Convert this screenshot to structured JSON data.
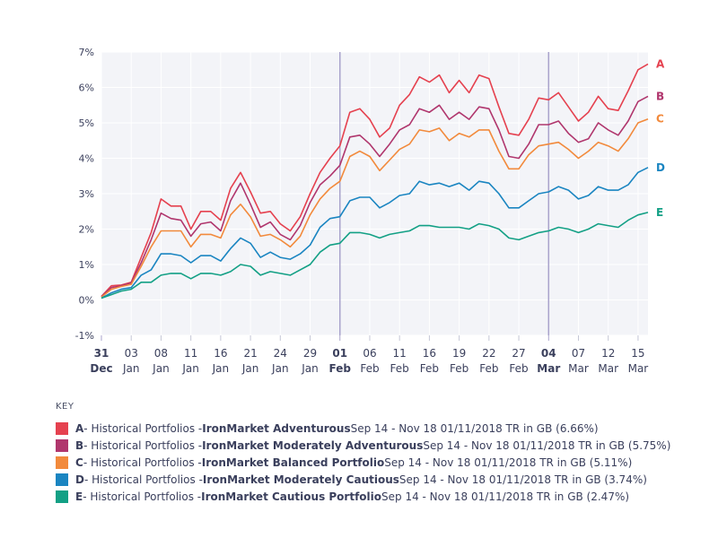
{
  "chart_data": {
    "type": "line",
    "xlabel": "",
    "ylabel": "",
    "ylim": [
      -1,
      7
    ],
    "y_ticks": [
      -1,
      0,
      1,
      2,
      3,
      4,
      5,
      6,
      7
    ],
    "y_tick_labels": [
      "-1%",
      "0%",
      "1%",
      "2%",
      "3%",
      "4%",
      "5%",
      "6%",
      "7%"
    ],
    "x_ticks": [
      {
        "idx": 0,
        "day": "31",
        "month": "Dec",
        "bold": true
      },
      {
        "idx": 3,
        "day": "03",
        "month": "Jan",
        "bold": false
      },
      {
        "idx": 6,
        "day": "08",
        "month": "Jan",
        "bold": false
      },
      {
        "idx": 9,
        "day": "11",
        "month": "Jan",
        "bold": false
      },
      {
        "idx": 12,
        "day": "16",
        "month": "Jan",
        "bold": false
      },
      {
        "idx": 15,
        "day": "21",
        "month": "Jan",
        "bold": false
      },
      {
        "idx": 18,
        "day": "24",
        "month": "Jan",
        "bold": false
      },
      {
        "idx": 21,
        "day": "29",
        "month": "Jan",
        "bold": false
      },
      {
        "idx": 24,
        "day": "01",
        "month": "Feb",
        "bold": true
      },
      {
        "idx": 27,
        "day": "06",
        "month": "Feb",
        "bold": false
      },
      {
        "idx": 30,
        "day": "11",
        "month": "Feb",
        "bold": false
      },
      {
        "idx": 33,
        "day": "16",
        "month": "Feb",
        "bold": false
      },
      {
        "idx": 36,
        "day": "19",
        "month": "Feb",
        "bold": false
      },
      {
        "idx": 39,
        "day": "22",
        "month": "Feb",
        "bold": false
      },
      {
        "idx": 42,
        "day": "27",
        "month": "Feb",
        "bold": false
      },
      {
        "idx": 45,
        "day": "04",
        "month": "Mar",
        "bold": true
      },
      {
        "idx": 48,
        "day": "07",
        "month": "Mar",
        "bold": false
      },
      {
        "idx": 51,
        "day": "12",
        "month": "Mar",
        "bold": false
      },
      {
        "idx": 54,
        "day": "15",
        "month": "Mar",
        "bold": false
      }
    ],
    "month_separators": [
      24,
      45
    ],
    "x_count": 56,
    "series": [
      {
        "name": "A",
        "color": "#e5414f",
        "values": [
          0.1,
          0.4,
          0.42,
          0.5,
          1.2,
          1.9,
          2.85,
          2.65,
          2.65,
          2.0,
          2.5,
          2.5,
          2.25,
          3.15,
          3.6,
          3.05,
          2.45,
          2.5,
          2.15,
          1.95,
          2.35,
          3.0,
          3.6,
          4.0,
          4.35,
          5.3,
          5.4,
          5.1,
          4.6,
          4.85,
          5.5,
          5.8,
          6.3,
          6.15,
          6.35,
          5.85,
          6.2,
          5.85,
          6.35,
          6.25,
          5.45,
          4.7,
          4.65,
          5.1,
          5.7,
          5.65,
          5.85,
          5.45,
          5.05,
          5.3,
          5.75,
          5.4,
          5.35,
          5.9,
          6.5,
          6.66
        ]
      },
      {
        "name": "B",
        "color": "#b0366d",
        "values": [
          0.1,
          0.35,
          0.4,
          0.48,
          1.05,
          1.7,
          2.45,
          2.3,
          2.25,
          1.8,
          2.15,
          2.2,
          1.95,
          2.8,
          3.3,
          2.7,
          2.05,
          2.2,
          1.85,
          1.7,
          2.1,
          2.75,
          3.25,
          3.5,
          3.8,
          4.6,
          4.65,
          4.4,
          4.05,
          4.4,
          4.8,
          4.95,
          5.4,
          5.3,
          5.5,
          5.1,
          5.3,
          5.1,
          5.45,
          5.4,
          4.8,
          4.05,
          4.0,
          4.4,
          4.95,
          4.95,
          5.05,
          4.7,
          4.45,
          4.55,
          5.0,
          4.8,
          4.65,
          5.05,
          5.6,
          5.75
        ]
      },
      {
        "name": "C",
        "color": "#f28a3c",
        "values": [
          0.08,
          0.3,
          0.38,
          0.44,
          0.95,
          1.5,
          1.95,
          1.95,
          1.95,
          1.5,
          1.85,
          1.85,
          1.75,
          2.4,
          2.7,
          2.35,
          1.8,
          1.85,
          1.7,
          1.5,
          1.8,
          2.4,
          2.85,
          3.15,
          3.35,
          4.05,
          4.2,
          4.05,
          3.65,
          3.95,
          4.25,
          4.4,
          4.8,
          4.75,
          4.85,
          4.5,
          4.7,
          4.6,
          4.8,
          4.8,
          4.2,
          3.7,
          3.7,
          4.1,
          4.35,
          4.4,
          4.45,
          4.25,
          4.0,
          4.2,
          4.45,
          4.35,
          4.2,
          4.55,
          5.0,
          5.11
        ]
      },
      {
        "name": "D",
        "color": "#1a85c1",
        "values": [
          0.05,
          0.2,
          0.3,
          0.35,
          0.7,
          0.85,
          1.3,
          1.3,
          1.25,
          1.05,
          1.25,
          1.25,
          1.1,
          1.45,
          1.75,
          1.6,
          1.2,
          1.35,
          1.2,
          1.15,
          1.3,
          1.55,
          2.05,
          2.3,
          2.35,
          2.8,
          2.9,
          2.9,
          2.6,
          2.75,
          2.95,
          3.0,
          3.35,
          3.25,
          3.3,
          3.2,
          3.3,
          3.1,
          3.35,
          3.3,
          3.0,
          2.6,
          2.6,
          2.8,
          3.0,
          3.05,
          3.2,
          3.1,
          2.85,
          2.95,
          3.2,
          3.1,
          3.1,
          3.25,
          3.6,
          3.74
        ]
      },
      {
        "name": "E",
        "color": "#13a085",
        "values": [
          0.05,
          0.15,
          0.25,
          0.3,
          0.5,
          0.5,
          0.7,
          0.75,
          0.75,
          0.6,
          0.75,
          0.75,
          0.7,
          0.8,
          1.0,
          0.95,
          0.7,
          0.8,
          0.75,
          0.7,
          0.85,
          1.0,
          1.35,
          1.55,
          1.6,
          1.9,
          1.9,
          1.85,
          1.75,
          1.85,
          1.9,
          1.95,
          2.1,
          2.1,
          2.05,
          2.05,
          2.05,
          2.0,
          2.15,
          2.1,
          2.0,
          1.75,
          1.7,
          1.8,
          1.9,
          1.95,
          2.05,
          2.0,
          1.9,
          2.0,
          2.15,
          2.1,
          2.05,
          2.25,
          2.4,
          2.47
        ]
      }
    ]
  },
  "key": {
    "title": "KEY",
    "items": [
      {
        "letter": "A",
        "color": "#e5414f",
        "prefix": " - Historical Portfolios - ",
        "name": "IronMarket Adventurous",
        "suffix": " Sep 14 - Nov 18 01/11/2018 TR in GB (6.66%)"
      },
      {
        "letter": "B",
        "color": "#b0366d",
        "prefix": " - Historical Portfolios - ",
        "name": "IronMarket Moderately Adventurous",
        "suffix": " Sep 14 - Nov 18 01/11/2018 TR in GB (5.75%)"
      },
      {
        "letter": "C",
        "color": "#f28a3c",
        "prefix": " - Historical Portfolios - ",
        "name": "IronMarket Balanced Portfolio",
        "suffix": " Sep 14 - Nov 18 01/11/2018 TR in GB (5.11%)"
      },
      {
        "letter": "D",
        "color": "#1a85c1",
        "prefix": " - Historical Portfolios - ",
        "name": "IronMarket Moderately Cautious",
        "suffix": " Sep 14 - Nov 18 01/11/2018 TR in GB (3.74%)"
      },
      {
        "letter": "E",
        "color": "#13a085",
        "prefix": " - Historical Portfolios - ",
        "name": "IronMarket Cautious Portfolio",
        "suffix": " Sep 14 - Nov 18 01/11/2018 TR in GB (2.47%)"
      }
    ]
  }
}
